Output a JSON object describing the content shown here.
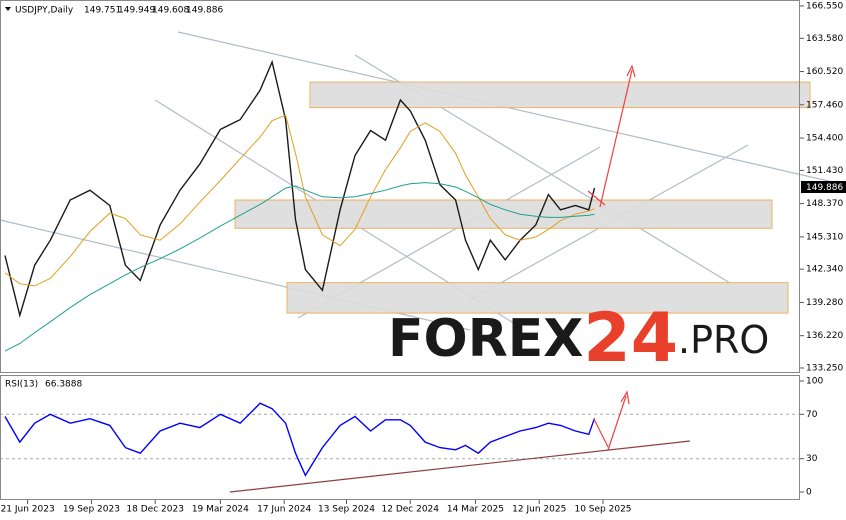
{
  "chart_data": [
    {
      "type": "line",
      "title": "USDJPY,Daily",
      "ohlc": [
        149.751,
        149.949,
        149.608,
        149.886
      ],
      "x": [
        "2023-05-20",
        "2023-06-10",
        "2023-07-01",
        "2023-07-23",
        "2023-08-20",
        "2023-09-17",
        "2023-10-15",
        "2023-11-06",
        "2023-11-27",
        "2023-12-25",
        "2024-01-22",
        "2024-02-19",
        "2024-03-19",
        "2024-04-16",
        "2024-05-14",
        "2024-05-31",
        "2024-06-19",
        "2024-07-03",
        "2024-07-17",
        "2024-08-10",
        "2024-09-04",
        "2024-09-25",
        "2024-10-17",
        "2024-11-07",
        "2024-11-28",
        "2024-12-12",
        "2025-01-02",
        "2025-01-23",
        "2025-02-14",
        "2025-02-28",
        "2025-03-18",
        "2025-04-04",
        "2025-04-25",
        "2025-05-16",
        "2025-06-07",
        "2025-06-25",
        "2025-07-12",
        "2025-08-02",
        "2025-08-21",
        "2025-08-29"
      ],
      "series": [
        {
          "color": "#1a1a1a",
          "values": [
            143.6,
            138.1,
            142.7,
            145.0,
            148.7,
            149.6,
            148.2,
            142.7,
            141.3,
            146.4,
            149.6,
            152.0,
            155.2,
            156.1,
            158.8,
            161.4,
            156.1,
            146.9,
            142.3,
            140.4,
            147.8,
            152.8,
            155.1,
            154.2,
            157.9,
            156.9,
            154.2,
            150.1,
            148.7,
            145.0,
            142.3,
            145.0,
            143.2,
            145.0,
            146.4,
            149.2,
            147.8,
            148.2,
            147.8,
            149.8
          ]
        },
        {
          "color": "#e0a020",
          "values": [
            142.0,
            141.0,
            140.8,
            141.5,
            143.5,
            145.8,
            147.5,
            147.0,
            145.5,
            145.0,
            146.5,
            148.5,
            150.5,
            152.5,
            154.5,
            156.0,
            156.5,
            153.0,
            149.0,
            145.5,
            144.5,
            146.0,
            149.0,
            151.5,
            153.5,
            155.0,
            155.8,
            155.0,
            153.0,
            151.0,
            149.0,
            147.0,
            145.5,
            145.0,
            145.3,
            146.0,
            146.8,
            147.4,
            147.7,
            147.9
          ]
        },
        {
          "color": "#20a090",
          "values": [
            134.8,
            135.5,
            136.5,
            137.5,
            138.8,
            140.0,
            141.0,
            141.8,
            142.5,
            143.3,
            144.2,
            145.2,
            146.3,
            147.3,
            148.3,
            149.0,
            149.8,
            150.0,
            149.6,
            149.0,
            148.9,
            149.0,
            149.3,
            149.6,
            150.0,
            150.2,
            150.3,
            150.2,
            149.9,
            149.5,
            148.9,
            148.3,
            147.8,
            147.4,
            147.2,
            147.1,
            147.1,
            147.2,
            147.3,
            147.4
          ]
        }
      ],
      "xlim": [
        "2023-05-13",
        "2026-06-15"
      ],
      "ylim": [
        132.88,
        167.1
      ],
      "yticks": [
        {
          "value": 166.55,
          "label": "166.550"
        },
        {
          "value": 163.58,
          "label": "163.580"
        },
        {
          "value": 160.52,
          "label": "160.520"
        },
        {
          "value": 157.46,
          "label": "157.460"
        },
        {
          "value": 154.4,
          "label": "154.400"
        },
        {
          "value": 151.43,
          "label": "151.430"
        },
        {
          "value": 148.37,
          "label": "148.370"
        },
        {
          "value": 145.31,
          "label": "145.310"
        },
        {
          "value": 142.34,
          "label": "142.340"
        },
        {
          "value": 139.28,
          "label": "139.280"
        },
        {
          "value": 136.22,
          "label": "136.220"
        },
        {
          "value": 133.25,
          "label": "133.250"
        }
      ],
      "zones": [
        [
          157.2,
          159.55
        ],
        [
          146.1,
          148.7
        ],
        [
          138.3,
          141.1
        ]
      ],
      "watermark": [
        "FOREX",
        "24",
        ".PRO"
      ]
    },
    {
      "type": "line",
      "title": "RSI(13)",
      "last_value": 66.3888,
      "x": [
        "2023-05-20",
        "2023-06-10",
        "2023-07-01",
        "2023-07-23",
        "2023-08-20",
        "2023-09-17",
        "2023-10-15",
        "2023-11-06",
        "2023-11-27",
        "2023-12-25",
        "2024-01-22",
        "2024-02-19",
        "2024-03-19",
        "2024-04-16",
        "2024-05-14",
        "2024-05-31",
        "2024-06-19",
        "2024-07-03",
        "2024-07-17",
        "2024-08-10",
        "2024-09-04",
        "2024-09-25",
        "2024-10-17",
        "2024-11-07",
        "2024-11-28",
        "2024-12-12",
        "2025-01-02",
        "2025-01-23",
        "2025-02-14",
        "2025-02-28",
        "2025-03-18",
        "2025-04-04",
        "2025-04-25",
        "2025-05-16",
        "2025-06-07",
        "2025-06-25",
        "2025-07-12",
        "2025-08-02",
        "2025-08-21",
        "2025-08-29"
      ],
      "series": [
        {
          "color": "#0000ff",
          "values": [
            68,
            45,
            62,
            70,
            62,
            66,
            60,
            40,
            35,
            55,
            62,
            58,
            70,
            62,
            80,
            75,
            62,
            35,
            15,
            40,
            60,
            68,
            55,
            65,
            65,
            60,
            45,
            40,
            38,
            42,
            35,
            45,
            50,
            55,
            58,
            62,
            60,
            55,
            52,
            66.3888
          ]
        }
      ],
      "xlim": [
        "2023-05-13",
        "2026-06-15"
      ],
      "ylim": [
        -7.2,
        105.4
      ],
      "yticks": [
        0,
        30,
        70,
        100
      ],
      "levels": [
        30,
        70
      ],
      "xticks": [
        {
          "value": "2023-06-21",
          "label": "21 Jun 2023"
        },
        {
          "value": "2023-09-19",
          "label": "19 Sep 2023"
        },
        {
          "value": "2023-12-18",
          "label": "18 Dec 2023"
        },
        {
          "value": "2024-03-19",
          "label": "19 Mar 2024"
        },
        {
          "value": "2024-06-17",
          "label": "17 Jun 2024"
        },
        {
          "value": "2024-09-13",
          "label": "13 Sep 2024"
        },
        {
          "value": "2024-12-12",
          "label": "12 Dec 2024"
        },
        {
          "value": "2025-03-14",
          "label": "14 Mar 2025"
        },
        {
          "value": "2025-06-12",
          "label": "12 Jun 2025"
        },
        {
          "value": "2025-09-10",
          "label": "10 Sep 2025"
        }
      ]
    }
  ]
}
